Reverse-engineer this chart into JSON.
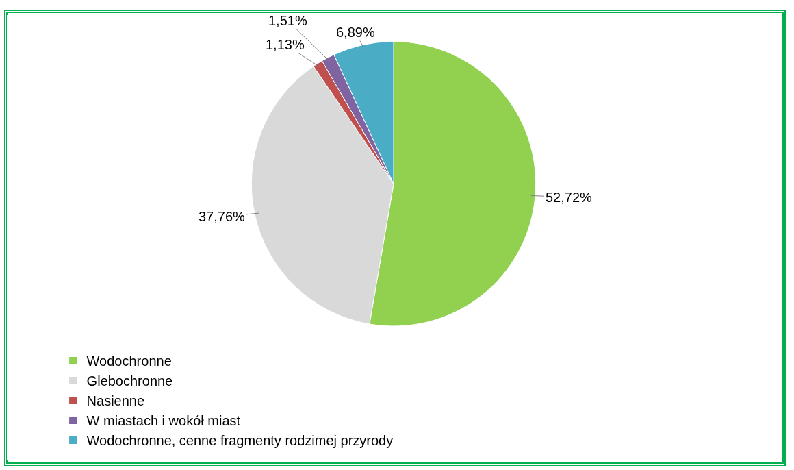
{
  "chart_data": {
    "type": "pie",
    "categories": [
      "Wodochronne",
      "Glebochronne",
      "Nasienne",
      "W miastach i wokół miast",
      "Wodochronne, cenne fragmenty rodzimej przyrody"
    ],
    "values": [
      52.72,
      37.76,
      1.13,
      1.51,
      6.89
    ],
    "value_labels": [
      "52,72%",
      "37,76%",
      "1,13%",
      "1,51%",
      "6,89%"
    ],
    "colors": [
      "#92d050",
      "#d9d9d9",
      "#c0504d",
      "#8064a2",
      "#4bacc6"
    ],
    "legend": "bottom left"
  }
}
